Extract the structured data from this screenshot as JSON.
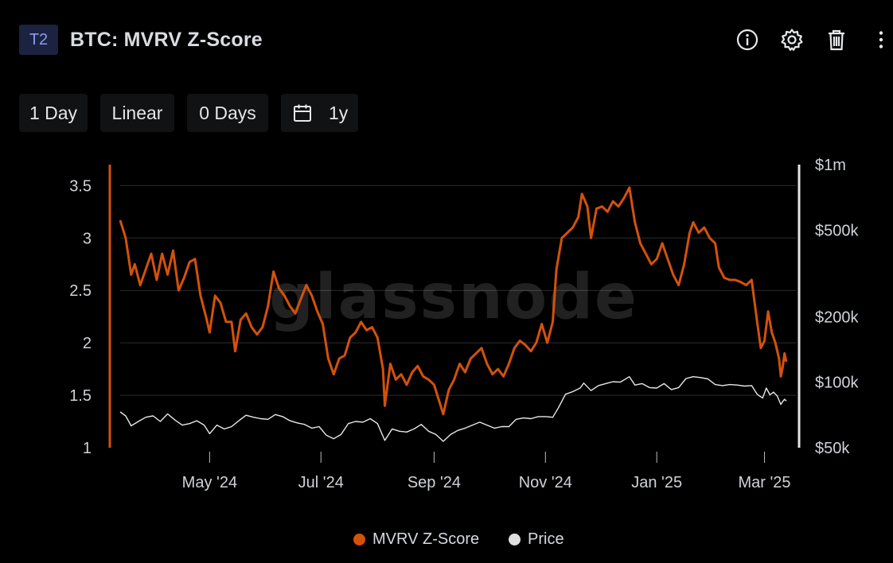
{
  "header": {
    "badge": "T2",
    "title": "BTC: MVRV Z-Score",
    "icons": [
      "info-icon",
      "gear-icon",
      "trash-icon",
      "more-vertical-icon"
    ]
  },
  "toolbar": {
    "resolution": "1 Day",
    "scale": "Linear",
    "moving_average": "0 Days",
    "calendar_icon": "calendar-icon",
    "range": "1y"
  },
  "watermark": "glassnode",
  "colors": {
    "background": "#000000",
    "zscore": "#d3520b",
    "price": "#e8e8e8",
    "grid": "#2a2c30",
    "text": "#cfd2d7"
  },
  "legend": [
    {
      "label": "MVRV Z-Score",
      "color": "#d3520b"
    },
    {
      "label": "Price",
      "color": "#e0e0e0"
    }
  ],
  "chart_data": {
    "type": "line",
    "x_tick_labels": [
      "May '24",
      "Jul '24",
      "Sep '24",
      "Nov '24",
      "Jan '25",
      "Mar '25"
    ],
    "x_tick_dates": [
      "2024-05-01",
      "2024-07-01",
      "2024-09-01",
      "2024-11-01",
      "2025-01-01",
      "2025-03-01"
    ],
    "x_range": [
      "2024-03-13",
      "2025-03-13"
    ],
    "y_left": {
      "ticks": [
        "1",
        "1.5",
        "2",
        "2.5",
        "3",
        "3.5"
      ],
      "range": [
        1,
        3.7
      ],
      "scale": "linear"
    },
    "y_right": {
      "ticks": [
        "$50k",
        "$100k",
        "$200k",
        "$500k",
        "$1m"
      ],
      "tick_values": [
        50000,
        100000,
        200000,
        500000,
        1000000
      ],
      "range": [
        50000,
        1000000
      ],
      "scale": "log"
    },
    "grid": "horizontal",
    "series": [
      {
        "name": "MVRV Z-Score",
        "axis": "left",
        "points": [
          [
            "2024-03-13",
            3.17
          ],
          [
            "2024-03-16",
            3.0
          ],
          [
            "2024-03-19",
            2.65
          ],
          [
            "2024-03-21",
            2.75
          ],
          [
            "2024-03-24",
            2.55
          ],
          [
            "2024-03-27",
            2.7
          ],
          [
            "2024-03-30",
            2.85
          ],
          [
            "2024-04-02",
            2.6
          ],
          [
            "2024-04-05",
            2.85
          ],
          [
            "2024-04-08",
            2.65
          ],
          [
            "2024-04-11",
            2.88
          ],
          [
            "2024-04-14",
            2.5
          ],
          [
            "2024-04-17",
            2.62
          ],
          [
            "2024-04-20",
            2.77
          ],
          [
            "2024-04-23",
            2.8
          ],
          [
            "2024-04-26",
            2.45
          ],
          [
            "2024-04-29",
            2.25
          ],
          [
            "2024-05-01",
            2.1
          ],
          [
            "2024-05-04",
            2.45
          ],
          [
            "2024-05-07",
            2.38
          ],
          [
            "2024-05-10",
            2.2
          ],
          [
            "2024-05-13",
            2.2
          ],
          [
            "2024-05-15",
            1.92
          ],
          [
            "2024-05-18",
            2.22
          ],
          [
            "2024-05-21",
            2.28
          ],
          [
            "2024-05-24",
            2.15
          ],
          [
            "2024-05-27",
            2.08
          ],
          [
            "2024-05-30",
            2.15
          ],
          [
            "2024-06-02",
            2.35
          ],
          [
            "2024-06-05",
            2.68
          ],
          [
            "2024-06-08",
            2.52
          ],
          [
            "2024-06-11",
            2.45
          ],
          [
            "2024-06-14",
            2.35
          ],
          [
            "2024-06-17",
            2.28
          ],
          [
            "2024-06-20",
            2.42
          ],
          [
            "2024-06-23",
            2.55
          ],
          [
            "2024-06-26",
            2.45
          ],
          [
            "2024-06-29",
            2.3
          ],
          [
            "2024-07-02",
            2.18
          ],
          [
            "2024-07-05",
            1.85
          ],
          [
            "2024-07-08",
            1.7
          ],
          [
            "2024-07-11",
            1.85
          ],
          [
            "2024-07-14",
            1.88
          ],
          [
            "2024-07-17",
            2.05
          ],
          [
            "2024-07-20",
            2.1
          ],
          [
            "2024-07-23",
            2.2
          ],
          [
            "2024-07-26",
            2.12
          ],
          [
            "2024-07-29",
            2.15
          ],
          [
            "2024-08-01",
            2.05
          ],
          [
            "2024-08-04",
            1.75
          ],
          [
            "2024-08-05",
            1.4
          ],
          [
            "2024-08-08",
            1.8
          ],
          [
            "2024-08-11",
            1.65
          ],
          [
            "2024-08-14",
            1.7
          ],
          [
            "2024-08-17",
            1.6
          ],
          [
            "2024-08-20",
            1.72
          ],
          [
            "2024-08-23",
            1.78
          ],
          [
            "2024-08-26",
            1.68
          ],
          [
            "2024-08-29",
            1.65
          ],
          [
            "2024-09-01",
            1.6
          ],
          [
            "2024-09-06",
            1.32
          ],
          [
            "2024-09-09",
            1.55
          ],
          [
            "2024-09-12",
            1.65
          ],
          [
            "2024-09-15",
            1.8
          ],
          [
            "2024-09-18",
            1.72
          ],
          [
            "2024-09-21",
            1.85
          ],
          [
            "2024-09-24",
            1.9
          ],
          [
            "2024-09-27",
            1.95
          ],
          [
            "2024-09-30",
            1.8
          ],
          [
            "2024-10-03",
            1.7
          ],
          [
            "2024-10-06",
            1.75
          ],
          [
            "2024-10-09",
            1.68
          ],
          [
            "2024-10-12",
            1.8
          ],
          [
            "2024-10-15",
            1.95
          ],
          [
            "2024-10-18",
            2.02
          ],
          [
            "2024-10-21",
            1.98
          ],
          [
            "2024-10-24",
            1.92
          ],
          [
            "2024-10-27",
            2.0
          ],
          [
            "2024-10-30",
            2.18
          ],
          [
            "2024-11-02",
            2.0
          ],
          [
            "2024-11-05",
            2.2
          ],
          [
            "2024-11-07",
            2.7
          ],
          [
            "2024-11-10",
            3.0
          ],
          [
            "2024-11-13",
            3.05
          ],
          [
            "2024-11-16",
            3.1
          ],
          [
            "2024-11-19",
            3.2
          ],
          [
            "2024-11-21",
            3.42
          ],
          [
            "2024-11-24",
            3.3
          ],
          [
            "2024-11-26",
            3.0
          ],
          [
            "2024-11-29",
            3.28
          ],
          [
            "2024-12-02",
            3.3
          ],
          [
            "2024-12-05",
            3.25
          ],
          [
            "2024-12-08",
            3.35
          ],
          [
            "2024-12-11",
            3.3
          ],
          [
            "2024-12-14",
            3.38
          ],
          [
            "2024-12-17",
            3.48
          ],
          [
            "2024-12-20",
            3.15
          ],
          [
            "2024-12-23",
            2.95
          ],
          [
            "2024-12-26",
            2.85
          ],
          [
            "2024-12-29",
            2.75
          ],
          [
            "2025-01-01",
            2.8
          ],
          [
            "2025-01-04",
            2.95
          ],
          [
            "2025-01-07",
            2.8
          ],
          [
            "2025-01-10",
            2.65
          ],
          [
            "2025-01-13",
            2.55
          ],
          [
            "2025-01-16",
            2.75
          ],
          [
            "2025-01-19",
            3.05
          ],
          [
            "2025-01-21",
            3.15
          ],
          [
            "2025-01-24",
            3.05
          ],
          [
            "2025-01-27",
            3.1
          ],
          [
            "2025-01-30",
            3.0
          ],
          [
            "2025-02-02",
            2.95
          ],
          [
            "2025-02-04",
            2.72
          ],
          [
            "2025-02-07",
            2.62
          ],
          [
            "2025-02-10",
            2.6
          ],
          [
            "2025-02-13",
            2.6
          ],
          [
            "2025-02-16",
            2.58
          ],
          [
            "2025-02-19",
            2.55
          ],
          [
            "2025-02-22",
            2.6
          ],
          [
            "2025-02-25",
            2.2
          ],
          [
            "2025-02-27",
            1.95
          ],
          [
            "2025-03-01",
            2.02
          ],
          [
            "2025-03-03",
            2.3
          ],
          [
            "2025-03-05",
            2.1
          ],
          [
            "2025-03-07",
            2.0
          ],
          [
            "2025-03-09",
            1.85
          ],
          [
            "2025-03-10",
            1.68
          ],
          [
            "2025-03-11",
            1.77
          ],
          [
            "2025-03-12",
            1.9
          ],
          [
            "2025-03-13",
            1.82
          ]
        ]
      },
      {
        "name": "Price",
        "axis": "right",
        "points": [
          [
            "2024-03-13",
            73000
          ],
          [
            "2024-03-16",
            70000
          ],
          [
            "2024-03-19",
            63000
          ],
          [
            "2024-03-23",
            66000
          ],
          [
            "2024-03-27",
            69000
          ],
          [
            "2024-03-31",
            70000
          ],
          [
            "2024-04-04",
            66000
          ],
          [
            "2024-04-08",
            71500
          ],
          [
            "2024-04-12",
            67000
          ],
          [
            "2024-04-16",
            63500
          ],
          [
            "2024-04-20",
            64500
          ],
          [
            "2024-04-24",
            66500
          ],
          [
            "2024-04-28",
            63500
          ],
          [
            "2024-05-01",
            58000
          ],
          [
            "2024-05-05",
            63500
          ],
          [
            "2024-05-09",
            61000
          ],
          [
            "2024-05-13",
            62500
          ],
          [
            "2024-05-17",
            66500
          ],
          [
            "2024-05-21",
            70500
          ],
          [
            "2024-05-25",
            69000
          ],
          [
            "2024-05-29",
            68000
          ],
          [
            "2024-06-02",
            67500
          ],
          [
            "2024-06-06",
            71000
          ],
          [
            "2024-06-10",
            69500
          ],
          [
            "2024-06-14",
            66500
          ],
          [
            "2024-06-18",
            65000
          ],
          [
            "2024-06-22",
            64000
          ],
          [
            "2024-06-26",
            61500
          ],
          [
            "2024-06-30",
            62500
          ],
          [
            "2024-07-04",
            57000
          ],
          [
            "2024-07-08",
            55000
          ],
          [
            "2024-07-12",
            57500
          ],
          [
            "2024-07-16",
            64500
          ],
          [
            "2024-07-20",
            66000
          ],
          [
            "2024-07-24",
            65500
          ],
          [
            "2024-07-28",
            68000
          ],
          [
            "2024-08-01",
            64500
          ],
          [
            "2024-08-05",
            54000
          ],
          [
            "2024-08-09",
            61000
          ],
          [
            "2024-08-13",
            59500
          ],
          [
            "2024-08-17",
            59000
          ],
          [
            "2024-08-21",
            61000
          ],
          [
            "2024-08-25",
            64000
          ],
          [
            "2024-08-29",
            59500
          ],
          [
            "2024-09-02",
            57500
          ],
          [
            "2024-09-06",
            53500
          ],
          [
            "2024-09-10",
            57500
          ],
          [
            "2024-09-14",
            60000
          ],
          [
            "2024-09-18",
            61500
          ],
          [
            "2024-09-22",
            63500
          ],
          [
            "2024-09-26",
            65500
          ],
          [
            "2024-09-30",
            63500
          ],
          [
            "2024-10-04",
            61500
          ],
          [
            "2024-10-08",
            62500
          ],
          [
            "2024-10-12",
            62500
          ],
          [
            "2024-10-16",
            67500
          ],
          [
            "2024-10-20",
            68500
          ],
          [
            "2024-10-24",
            68000
          ],
          [
            "2024-10-28",
            69500
          ],
          [
            "2024-11-01",
            69500
          ],
          [
            "2024-11-05",
            69000
          ],
          [
            "2024-11-08",
            76000
          ],
          [
            "2024-11-12",
            88000
          ],
          [
            "2024-11-16",
            90500
          ],
          [
            "2024-11-20",
            94000
          ],
          [
            "2024-11-22",
            99000
          ],
          [
            "2024-11-26",
            91500
          ],
          [
            "2024-11-30",
            96500
          ],
          [
            "2024-12-04",
            98500
          ],
          [
            "2024-12-08",
            100500
          ],
          [
            "2024-12-12",
            100000
          ],
          [
            "2024-12-17",
            106000
          ],
          [
            "2024-12-20",
            97000
          ],
          [
            "2024-12-24",
            98500
          ],
          [
            "2024-12-28",
            94500
          ],
          [
            "2025-01-01",
            94000
          ],
          [
            "2025-01-05",
            98500
          ],
          [
            "2025-01-09",
            92500
          ],
          [
            "2025-01-13",
            94500
          ],
          [
            "2025-01-17",
            104000
          ],
          [
            "2025-01-21",
            106000
          ],
          [
            "2025-01-25",
            105000
          ],
          [
            "2025-01-29",
            103500
          ],
          [
            "2025-02-02",
            97500
          ],
          [
            "2025-02-06",
            96500
          ],
          [
            "2025-02-10",
            97500
          ],
          [
            "2025-02-14",
            97000
          ],
          [
            "2025-02-18",
            96000
          ],
          [
            "2025-02-22",
            96500
          ],
          [
            "2025-02-25",
            88000
          ],
          [
            "2025-02-28",
            84500
          ],
          [
            "2025-03-02",
            94000
          ],
          [
            "2025-03-04",
            87500
          ],
          [
            "2025-03-06",
            90000
          ],
          [
            "2025-03-08",
            86500
          ],
          [
            "2025-03-10",
            79000
          ],
          [
            "2025-03-11",
            81500
          ],
          [
            "2025-03-12",
            83500
          ],
          [
            "2025-03-13",
            82000
          ]
        ]
      }
    ]
  }
}
